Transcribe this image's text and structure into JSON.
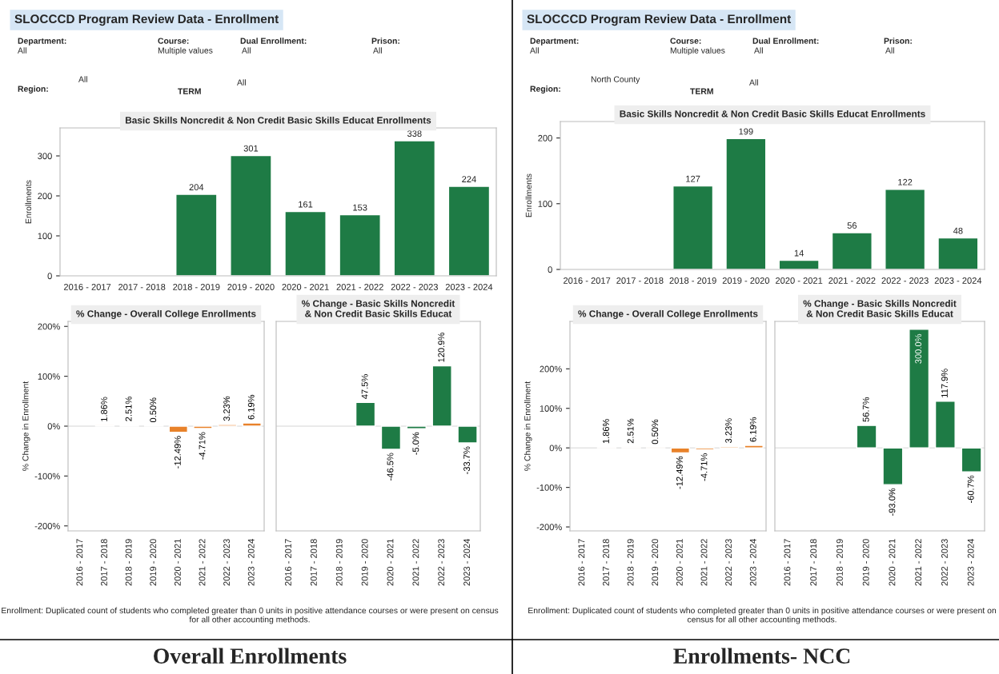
{
  "chart_data": [
    {
      "type": "bar",
      "title": "Basic Skills Noncredit & Non Credit Basic Skills Educat Enrollments",
      "ylabel": "Enrollments",
      "categories": [
        "2016 - 2017",
        "2017 - 2018",
        "2018 - 2019",
        "2019 - 2020",
        "2020 - 2021",
        "2021 - 2022",
        "2022 - 2023",
        "2023 - 2024"
      ],
      "values": [
        null,
        null,
        204,
        301,
        161,
        153,
        338,
        224
      ],
      "color": "#1e7b45",
      "data_labels": true,
      "ylim": [
        0,
        370
      ],
      "yticks": [
        0,
        100,
        200,
        300
      ],
      "annotations": [
        "SLOCCCD Program Review Data - Enrollment",
        "Department:",
        "All",
        "Course:",
        "Multiple values",
        "Dual Enrollment:",
        "All",
        "Prison:",
        "All",
        "Region:",
        "All",
        "TERM",
        "All"
      ]
    },
    {
      "type": "bar",
      "title": "% Change - Overall College Enrollments",
      "ylabel": "% Change in Enrollment",
      "categories": [
        "2016 - 2017",
        "2017 - 2018",
        "2018 - 2019",
        "2019 - 2020",
        "2020 - 2021",
        "2021 - 2022",
        "2022 - 2023",
        "2023 - 2024"
      ],
      "values": [
        null,
        1.86,
        2.51,
        0.5,
        -12.49,
        -4.71,
        3.23,
        6.19
      ],
      "color": "#e8822a",
      "value_labels": [
        null,
        "1.86%",
        "2.51%",
        "0.50%",
        "-12.49%",
        "-4.71%",
        "3.23%",
        "6.19%"
      ],
      "ylim": [
        -210,
        210
      ],
      "yticks": [
        {
          "value": -200,
          "label": "-200%"
        },
        {
          "value": -100,
          "label": "-100%"
        },
        {
          "value": 0,
          "label": "0%"
        },
        {
          "value": 100,
          "label": "100%"
        },
        {
          "value": 200,
          "label": "200%"
        }
      ],
      "annotations": [
        "Enrollment: Duplicated count of students who completed greater than 0 units in positive attendance courses or were present on census for all other accounting methods.",
        "Overall Enrollments"
      ]
    },
    {
      "type": "bar",
      "title": "% Change - Basic Skills Noncredit & Non Credit Basic Skills Educat",
      "categories": [
        "2016 - 2017",
        "2017 - 2018",
        "2018 - 2019",
        "2019 - 2020",
        "2020 - 2021",
        "2021 - 2022",
        "2022 - 2023",
        "2023 - 2024"
      ],
      "values": [
        null,
        null,
        null,
        47.5,
        -46.5,
        -5.0,
        120.9,
        -33.7
      ],
      "color": "#1e7b45",
      "value_labels": [
        null,
        null,
        null,
        "47.5%",
        "-46.5%",
        "-5.0%",
        "120.9%",
        "-33.7%"
      ],
      "tick_labels": "x",
      "ylim": [
        -210,
        210
      ]
    },
    {
      "type": "bar",
      "title": "Basic Skills Noncredit & Non Credit Basic Skills Educat Enrollments",
      "ylabel": "Enrollments",
      "categories": [
        "2016 - 2017",
        "2017 - 2018",
        "2018 - 2019",
        "2019 - 2020",
        "2020 - 2021",
        "2021 - 2022",
        "2022 - 2023",
        "2023 - 2024"
      ],
      "values": [
        null,
        null,
        127,
        199,
        14,
        56,
        122,
        48
      ],
      "color": "#1e7b45",
      "data_labels": true,
      "ylim": [
        0,
        225
      ],
      "yticks": [
        0,
        100,
        200
      ],
      "annotations": [
        "SLOCCCD Program Review Data - Enrollment",
        "Department:",
        "All",
        "Course:",
        "Multiple values",
        "Dual Enrollment:",
        "All",
        "Prison:",
        "All",
        "Region:",
        "North County",
        "TERM",
        "All"
      ]
    },
    {
      "type": "bar",
      "title": "% Change - Overall College Enrollments",
      "ylabel": "% Change in Enrollment",
      "categories": [
        "2016 - 2017",
        "2017 - 2018",
        "2018 - 2019",
        "2019 - 2020",
        "2020 - 2021",
        "2021 - 2022",
        "2022 - 2023",
        "2023 - 2024"
      ],
      "values": [
        null,
        1.86,
        2.51,
        0.5,
        -12.49,
        -4.71,
        3.23,
        6.19
      ],
      "color": "#e8822a",
      "value_labels": [
        null,
        "1.86%",
        "2.51%",
        "0.50%",
        "-12.49%",
        "-4.71%",
        "3.23%",
        "6.19%"
      ],
      "ylim": [
        -210,
        320
      ],
      "yticks": [
        {
          "value": -200,
          "label": "-200%"
        },
        {
          "value": -100,
          "label": "-100%"
        },
        {
          "value": 0,
          "label": "0%"
        },
        {
          "value": 100,
          "label": "100%"
        },
        {
          "value": 200,
          "label": "200%"
        }
      ],
      "annotations": [
        "Enrollment: Duplicated count of students who completed greater than 0 units in positive attendance courses or were present on census for all other accounting methods.",
        "Enrollments- NCC"
      ]
    },
    {
      "type": "bar",
      "title": "% Change - Basic Skills Noncredit & Non Credit Basic Skills Educat",
      "categories": [
        "2016 - 2017",
        "2017 - 2018",
        "2018 - 2019",
        "2019 - 2020",
        "2020 - 2021",
        "2021 - 2022",
        "2022 - 2023",
        "2023 - 2024"
      ],
      "values": [
        null,
        null,
        null,
        56.7,
        -93.0,
        300.0,
        117.9,
        -60.7
      ],
      "color": "#1e7b45",
      "value_labels": [
        null,
        null,
        null,
        "56.7%",
        "-93.0%",
        "300.0%",
        "117.9%",
        "-60.7%"
      ],
      "tick_labels": "x",
      "ylim": [
        -210,
        320
      ]
    }
  ]
}
